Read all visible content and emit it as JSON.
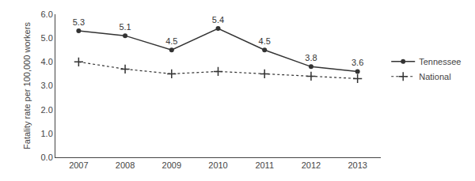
{
  "chart_data": {
    "type": "line",
    "x": [
      2007,
      2008,
      2009,
      2010,
      2011,
      2012,
      2013
    ],
    "series": [
      {
        "name": "Tennessee",
        "color": "#333333",
        "marker": "circle",
        "line_style": "solid",
        "data_labels": true,
        "values": [
          5.3,
          5.1,
          4.5,
          5.4,
          4.5,
          3.8,
          3.6
        ]
      },
      {
        "name": "National",
        "color": "#333333",
        "marker": "cross",
        "line_style": "dotted",
        "values": [
          4.0,
          3.7,
          3.5,
          3.6,
          3.5,
          3.4,
          3.3
        ]
      }
    ],
    "ylabel": "Fatality rate per 100,000 workers",
    "xlim": [
      2006.5,
      2013.5
    ],
    "xticks": [
      2007,
      2008,
      2009,
      2010,
      2011,
      2012,
      2013
    ],
    "ylim": [
      0.0,
      6.0
    ],
    "yticks": [
      {
        "value": 0.0,
        "label": "0.0"
      },
      {
        "value": 1.0,
        "label": "1.0"
      },
      {
        "value": 2.0,
        "label": "2.0"
      },
      {
        "value": 3.0,
        "label": "3.0"
      },
      {
        "value": 4.0,
        "label": "4.0"
      },
      {
        "value": 5.0,
        "label": "5.0"
      },
      {
        "value": 6.0,
        "label": "6.0"
      }
    ],
    "grid": false,
    "legend": "right"
  }
}
